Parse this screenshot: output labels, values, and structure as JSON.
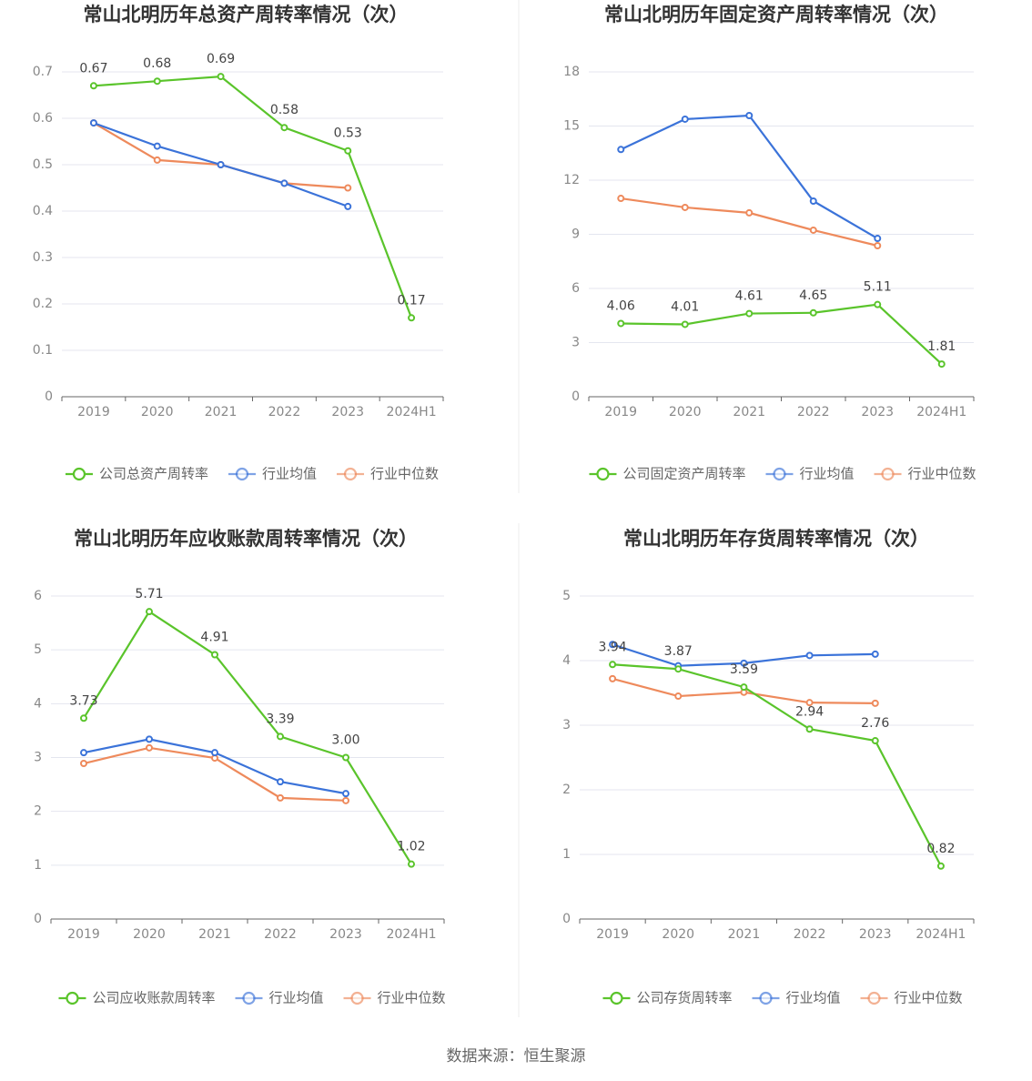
{
  "chart_data": [
    {
      "type": "line",
      "title": "常山北明历年总资产周转率情况（次）",
      "categories": [
        "2019",
        "2020",
        "2021",
        "2022",
        "2023",
        "2024H1"
      ],
      "ylim": [
        0,
        0.7
      ],
      "yticks": [
        0,
        0.1,
        0.2,
        0.3,
        0.4,
        0.5,
        0.6,
        0.7
      ],
      "grid": true,
      "series": [
        {
          "name": "公司总资产周转率",
          "color": "#5ac42b",
          "values": [
            0.67,
            0.68,
            0.69,
            0.58,
            0.53,
            0.17
          ],
          "value_labels": [
            "0.67",
            "0.68",
            "0.69",
            "0.58",
            "0.53",
            "0.17"
          ]
        },
        {
          "name": "行业均值",
          "color": "#3b73d9",
          "values": [
            0.59,
            0.54,
            0.5,
            0.46,
            0.41,
            null
          ]
        },
        {
          "name": "行业中位数",
          "color": "#ee8a5c",
          "values": [
            0.59,
            0.51,
            0.5,
            0.46,
            0.45,
            null
          ]
        }
      ]
    },
    {
      "type": "line",
      "title": "常山北明历年固定资产周转率情况（次）",
      "categories": [
        "2019",
        "2020",
        "2021",
        "2022",
        "2023",
        "2024H1"
      ],
      "ylim": [
        0,
        18
      ],
      "yticks": [
        0,
        3,
        6,
        9,
        12,
        15,
        18
      ],
      "grid": true,
      "series": [
        {
          "name": "公司固定资产周转率",
          "color": "#5ac42b",
          "values": [
            4.06,
            4.01,
            4.61,
            4.65,
            5.11,
            1.81
          ],
          "value_labels": [
            "4.06",
            "4.01",
            "4.61",
            "4.65",
            "5.11",
            "1.81"
          ]
        },
        {
          "name": "行业均值",
          "color": "#3b73d9",
          "values": [
            13.7,
            15.38,
            15.58,
            10.84,
            8.77,
            null
          ]
        },
        {
          "name": "行业中位数",
          "color": "#ee8a5c",
          "values": [
            10.99,
            10.49,
            10.19,
            9.23,
            8.37,
            null
          ]
        }
      ]
    },
    {
      "type": "line",
      "title": "常山北明历年应收账款周转率情况（次）",
      "categories": [
        "2019",
        "2020",
        "2021",
        "2022",
        "2023",
        "2024H1"
      ],
      "ylim": [
        0,
        6
      ],
      "yticks": [
        0,
        1,
        2,
        3,
        4,
        5,
        6
      ],
      "grid": true,
      "series": [
        {
          "name": "公司应收账款周转率",
          "color": "#5ac42b",
          "values": [
            3.73,
            5.71,
            4.91,
            3.39,
            3.0,
            1.02
          ],
          "value_labels": [
            "3.73",
            "5.71",
            "4.91",
            "3.39",
            "3.00",
            "1.02"
          ]
        },
        {
          "name": "行业均值",
          "color": "#3b73d9",
          "values": [
            3.09,
            3.34,
            3.09,
            2.55,
            2.33,
            null
          ]
        },
        {
          "name": "行业中位数",
          "color": "#ee8a5c",
          "values": [
            2.89,
            3.18,
            2.99,
            2.25,
            2.2,
            null
          ]
        }
      ]
    },
    {
      "type": "line",
      "title": "常山北明历年存货周转率情况（次）",
      "categories": [
        "2019",
        "2020",
        "2021",
        "2022",
        "2023",
        "2024H1"
      ],
      "ylim": [
        0,
        5
      ],
      "yticks": [
        0,
        1,
        2,
        3,
        4,
        5
      ],
      "grid": true,
      "series": [
        {
          "name": "公司存货周转率",
          "color": "#5ac42b",
          "values": [
            3.94,
            3.87,
            3.59,
            2.94,
            2.76,
            0.82
          ],
          "value_labels": [
            "3.94",
            "3.87",
            "3.59",
            "2.94",
            "2.76",
            "0.82"
          ]
        },
        {
          "name": "行业均值",
          "color": "#3b73d9",
          "values": [
            4.25,
            3.92,
            3.96,
            4.08,
            4.1,
            null
          ]
        },
        {
          "name": "行业中位数",
          "color": "#ee8a5c",
          "values": [
            3.72,
            3.45,
            3.51,
            3.35,
            3.34,
            null
          ]
        }
      ]
    }
  ],
  "source": "数据来源：恒生聚源"
}
